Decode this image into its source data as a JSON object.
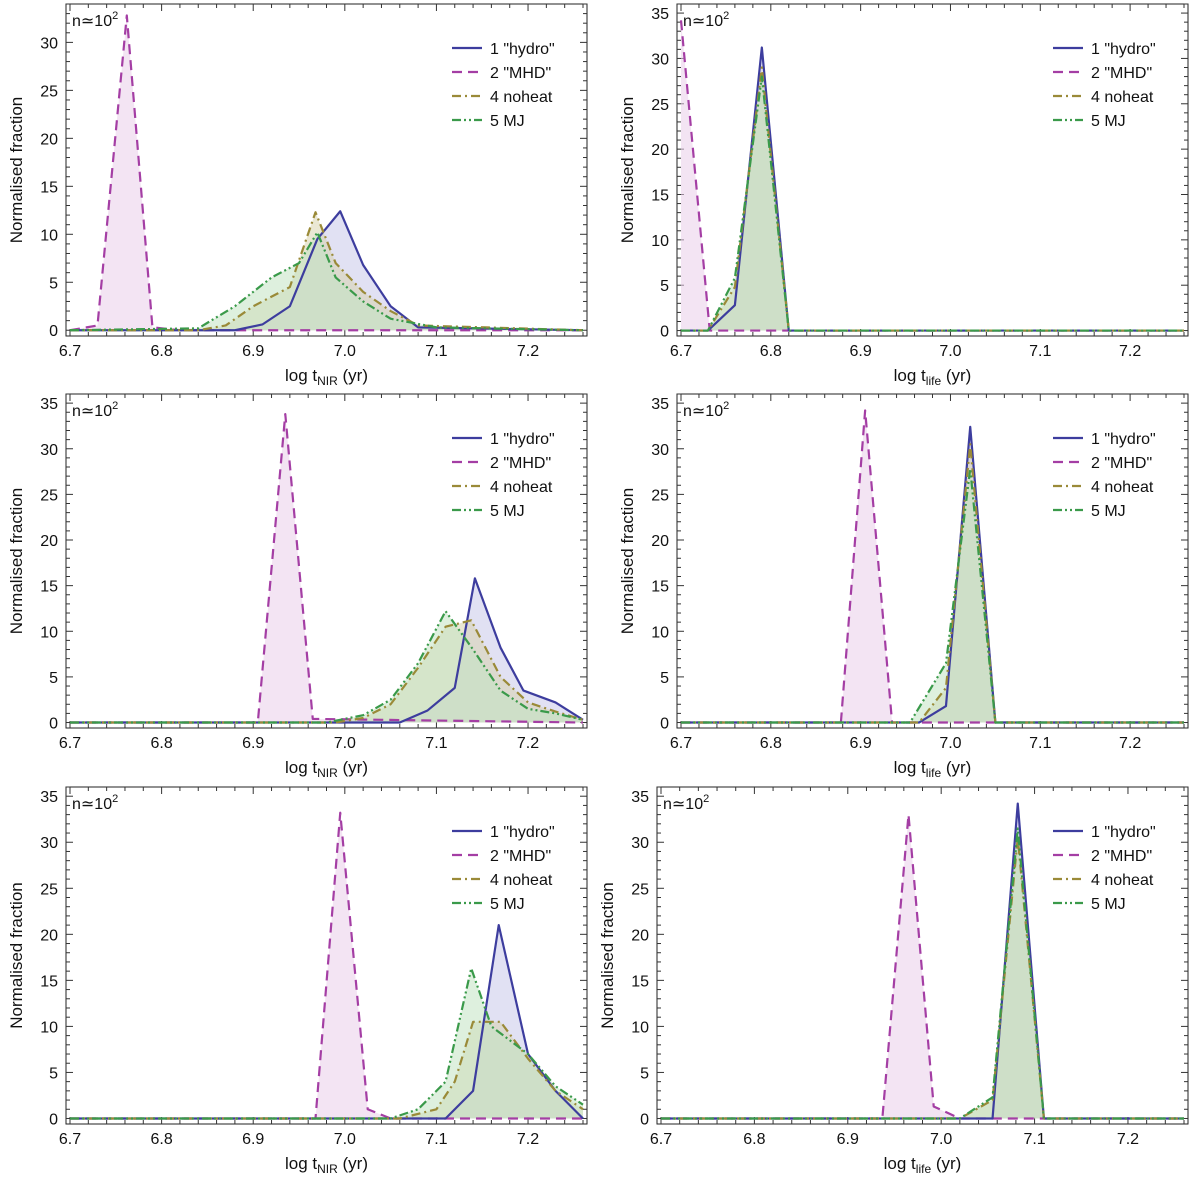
{
  "figure": {
    "legend": [
      {
        "name": "1 \"hydro\"",
        "color": "#3d3d9e",
        "fill": "#c9c9ea",
        "dash": "solid"
      },
      {
        "name": "2 \"MHD\"",
        "color": "#a43ea4",
        "fill": "#e9cde9",
        "dash": "dash"
      },
      {
        "name": "4 noheat",
        "color": "#9a8a38",
        "fill": "#d9d4ae",
        "dash": "dashdot"
      },
      {
        "name": "5 MJ",
        "color": "#3a9a4a",
        "fill": "#c3e3c3",
        "dash": "dashdotdot"
      }
    ],
    "annotation_prefix": "n≃10",
    "annotation_exp": "2"
  },
  "chart_data": [
    {
      "type": "area",
      "panel": "top-left",
      "xlabel_main": "log t",
      "xlabel_sub": "NIR",
      "xlabel_unit": " (yr)",
      "ylabel": "Normalised fraction",
      "xlim": [
        6.7,
        7.26
      ],
      "ylim": [
        -0.6,
        34
      ],
      "xticks": [
        "6.7",
        "6.8",
        "6.9",
        "7.0",
        "7.1",
        "7.2"
      ],
      "yticks": [
        "0",
        "5",
        "10",
        "15",
        "20",
        "25",
        "30"
      ],
      "series": [
        {
          "name": "1 \"hydro\"",
          "points": [
            [
              6.7,
              0
            ],
            [
              6.88,
              0
            ],
            [
              6.91,
              0.6
            ],
            [
              6.94,
              2.5
            ],
            [
              6.97,
              9.5
            ],
            [
              6.995,
              12.4
            ],
            [
              7.02,
              6.8
            ],
            [
              7.05,
              2.5
            ],
            [
              7.08,
              0.3
            ],
            [
              7.26,
              0
            ]
          ]
        },
        {
          "name": "2 \"MHD\"",
          "points": [
            [
              6.7,
              0
            ],
            [
              6.73,
              0.5
            ],
            [
              6.762,
              32.8
            ],
            [
              6.79,
              0.3
            ],
            [
              6.82,
              0
            ],
            [
              7.26,
              0
            ]
          ]
        },
        {
          "name": "4 noheat",
          "points": [
            [
              6.7,
              0
            ],
            [
              6.84,
              0
            ],
            [
              6.87,
              0.5
            ],
            [
              6.9,
              2.5
            ],
            [
              6.94,
              4.5
            ],
            [
              6.968,
              12.3
            ],
            [
              6.99,
              7.0
            ],
            [
              7.02,
              4.0
            ],
            [
              7.05,
              2.0
            ],
            [
              7.08,
              0.5
            ],
            [
              7.26,
              0
            ]
          ]
        },
        {
          "name": "5 MJ",
          "points": [
            [
              6.7,
              0
            ],
            [
              6.84,
              0.2
            ],
            [
              6.88,
              2.5
            ],
            [
              6.92,
              5.5
            ],
            [
              6.95,
              7.0
            ],
            [
              6.97,
              10.2
            ],
            [
              6.99,
              5.5
            ],
            [
              7.02,
              3.0
            ],
            [
              7.05,
              1.2
            ],
            [
              7.1,
              0.3
            ],
            [
              7.26,
              0
            ]
          ]
        }
      ]
    },
    {
      "type": "area",
      "panel": "top-right",
      "xlabel_main": "log t",
      "xlabel_sub": "life",
      "xlabel_unit": " (yr)",
      "ylabel": "Normalised fraction",
      "xlim": [
        6.7,
        7.26
      ],
      "ylim": [
        -0.6,
        36
      ],
      "xticks": [
        "6.7",
        "6.8",
        "6.9",
        "7.0",
        "7.1",
        "7.2"
      ],
      "yticks": [
        "0",
        "5",
        "10",
        "15",
        "20",
        "25",
        "30",
        "35"
      ],
      "series": [
        {
          "name": "1 \"hydro\"",
          "points": [
            [
              6.7,
              0
            ],
            [
              6.73,
              0
            ],
            [
              6.76,
              2.8
            ],
            [
              6.79,
              31.2
            ],
            [
              6.82,
              0
            ],
            [
              7.26,
              0
            ]
          ]
        },
        {
          "name": "2 \"MHD\"",
          "points": [
            [
              6.7,
              34.2
            ],
            [
              6.732,
              0
            ],
            [
              7.26,
              0
            ]
          ]
        },
        {
          "name": "4 noheat",
          "points": [
            [
              6.7,
              0
            ],
            [
              6.73,
              0
            ],
            [
              6.76,
              4.8
            ],
            [
              6.79,
              29.0
            ],
            [
              6.82,
              0
            ],
            [
              7.26,
              0
            ]
          ]
        },
        {
          "name": "5 MJ",
          "points": [
            [
              6.7,
              0
            ],
            [
              6.73,
              0
            ],
            [
              6.76,
              5.8
            ],
            [
              6.79,
              28.0
            ],
            [
              6.82,
              0
            ],
            [
              7.26,
              0
            ]
          ]
        }
      ]
    },
    {
      "type": "area",
      "panel": "middle-left",
      "xlabel_main": "log t",
      "xlabel_sub": "NIR",
      "xlabel_unit": " (yr)",
      "ylabel": "Normalised fraction",
      "xlim": [
        6.7,
        7.26
      ],
      "ylim": [
        -0.6,
        36
      ],
      "xticks": [
        "6.7",
        "6.8",
        "6.9",
        "7.0",
        "7.1",
        "7.2"
      ],
      "yticks": [
        "0",
        "5",
        "10",
        "15",
        "20",
        "25",
        "30",
        "35"
      ],
      "series": [
        {
          "name": "1 \"hydro\"",
          "points": [
            [
              6.7,
              0
            ],
            [
              7.06,
              0
            ],
            [
              7.09,
              1.3
            ],
            [
              7.12,
              3.8
            ],
            [
              7.142,
              15.8
            ],
            [
              7.17,
              8.2
            ],
            [
              7.195,
              3.5
            ],
            [
              7.23,
              2.2
            ],
            [
              7.26,
              0.3
            ]
          ]
        },
        {
          "name": "2 \"MHD\"",
          "points": [
            [
              6.7,
              0
            ],
            [
              6.905,
              0
            ],
            [
              6.935,
              33.8
            ],
            [
              6.965,
              0.4
            ],
            [
              7.26,
              0
            ]
          ]
        },
        {
          "name": "4 noheat",
          "points": [
            [
              6.7,
              0
            ],
            [
              6.99,
              0
            ],
            [
              7.02,
              0.5
            ],
            [
              7.05,
              2.0
            ],
            [
              7.08,
              6.0
            ],
            [
              7.11,
              10.5
            ],
            [
              7.138,
              11.2
            ],
            [
              7.17,
              5.0
            ],
            [
              7.2,
              2.2
            ],
            [
              7.23,
              1.2
            ],
            [
              7.26,
              0.3
            ]
          ]
        },
        {
          "name": "5 MJ",
          "points": [
            [
              6.7,
              0
            ],
            [
              6.98,
              0
            ],
            [
              7.02,
              0.8
            ],
            [
              7.05,
              2.5
            ],
            [
              7.08,
              6.5
            ],
            [
              7.11,
              12.2
            ],
            [
              7.14,
              8.0
            ],
            [
              7.17,
              3.5
            ],
            [
              7.2,
              1.5
            ],
            [
              7.23,
              1.0
            ],
            [
              7.26,
              0.3
            ]
          ]
        }
      ]
    },
    {
      "type": "area",
      "panel": "middle-right",
      "xlabel_main": "log t",
      "xlabel_sub": "life",
      "xlabel_unit": " (yr)",
      "ylabel": "Normalised fraction",
      "xlim": [
        6.7,
        7.26
      ],
      "ylim": [
        -0.6,
        36
      ],
      "xticks": [
        "6.7",
        "6.8",
        "6.9",
        "7.0",
        "7.1",
        "7.2"
      ],
      "yticks": [
        "0",
        "5",
        "10",
        "15",
        "20",
        "25",
        "30",
        "35"
      ],
      "series": [
        {
          "name": "1 \"hydro\"",
          "points": [
            [
              6.7,
              0
            ],
            [
              6.965,
              0
            ],
            [
              6.995,
              1.8
            ],
            [
              7.022,
              32.4
            ],
            [
              7.05,
              0
            ],
            [
              7.26,
              0
            ]
          ]
        },
        {
          "name": "2 \"MHD\"",
          "points": [
            [
              6.7,
              0
            ],
            [
              6.878,
              0
            ],
            [
              6.905,
              34.2
            ],
            [
              6.935,
              0
            ],
            [
              7.26,
              0
            ]
          ]
        },
        {
          "name": "4 noheat",
          "points": [
            [
              6.7,
              0
            ],
            [
              6.965,
              0
            ],
            [
              6.995,
              3.8
            ],
            [
              7.022,
              30.5
            ],
            [
              7.05,
              0
            ],
            [
              7.26,
              0
            ]
          ]
        },
        {
          "name": "5 MJ",
          "points": [
            [
              6.7,
              0
            ],
            [
              6.955,
              0
            ],
            [
              6.995,
              6.5
            ],
            [
              7.022,
              27.8
            ],
            [
              7.05,
              0
            ],
            [
              7.26,
              0
            ]
          ]
        }
      ]
    },
    {
      "type": "area",
      "panel": "bottom-left",
      "xlabel_main": "log t",
      "xlabel_sub": "NIR",
      "xlabel_unit": " (yr)",
      "ylabel": "Normalised fraction",
      "xlim": [
        6.7,
        7.26
      ],
      "ylim": [
        -0.6,
        36
      ],
      "xticks": [
        "6.7",
        "6.8",
        "6.9",
        "7.0",
        "7.1",
        "7.2"
      ],
      "yticks": [
        "0",
        "5",
        "10",
        "15",
        "20",
        "25",
        "30",
        "35"
      ],
      "series": [
        {
          "name": "1 \"hydro\"",
          "points": [
            [
              6.7,
              0
            ],
            [
              7.11,
              0
            ],
            [
              7.14,
              3.0
            ],
            [
              7.168,
              21.0
            ],
            [
              7.2,
              7.0
            ],
            [
              7.23,
              3.0
            ],
            [
              7.26,
              0
            ]
          ]
        },
        {
          "name": "2 \"MHD\"",
          "points": [
            [
              6.7,
              0
            ],
            [
              6.968,
              0
            ],
            [
              6.995,
              33.2
            ],
            [
              7.025,
              1.0
            ],
            [
              7.05,
              0
            ],
            [
              7.26,
              0
            ]
          ]
        },
        {
          "name": "4 noheat",
          "points": [
            [
              6.7,
              0
            ],
            [
              7.06,
              0
            ],
            [
              7.1,
              1.0
            ],
            [
              7.12,
              4.0
            ],
            [
              7.14,
              10.5
            ],
            [
              7.17,
              10.5
            ],
            [
              7.2,
              6.5
            ],
            [
              7.23,
              3.0
            ],
            [
              7.26,
              1.0
            ]
          ]
        },
        {
          "name": "5 MJ",
          "points": [
            [
              6.7,
              0
            ],
            [
              7.05,
              0
            ],
            [
              7.08,
              1.0
            ],
            [
              7.11,
              4.0
            ],
            [
              7.138,
              16.3
            ],
            [
              7.16,
              10.0
            ],
            [
              7.2,
              7.0
            ],
            [
              7.23,
              3.5
            ],
            [
              7.26,
              1.5
            ]
          ]
        }
      ]
    },
    {
      "type": "area",
      "panel": "bottom-right",
      "xlabel_main": "log t",
      "xlabel_sub": "life",
      "xlabel_unit": " (yr)",
      "ylabel": "Normalised fraction",
      "xlim": [
        6.7,
        7.26
      ],
      "ylim": [
        -0.6,
        36
      ],
      "xticks": [
        "6.7",
        "6.8",
        "6.9",
        "7.0",
        "7.1",
        "7.2"
      ],
      "yticks": [
        "0",
        "5",
        "10",
        "15",
        "20",
        "25",
        "30",
        "35"
      ],
      "series": [
        {
          "name": "1 \"hydro\"",
          "points": [
            [
              6.7,
              0
            ],
            [
              7.055,
              0
            ],
            [
              7.082,
              34.2
            ],
            [
              7.11,
              0
            ],
            [
              7.26,
              0
            ]
          ]
        },
        {
          "name": "2 \"MHD\"",
          "points": [
            [
              6.7,
              0
            ],
            [
              6.937,
              0
            ],
            [
              6.965,
              33.0
            ],
            [
              6.992,
              1.3
            ],
            [
              7.02,
              0
            ],
            [
              7.26,
              0
            ]
          ]
        },
        {
          "name": "4 noheat",
          "points": [
            [
              6.7,
              0
            ],
            [
              7.02,
              0
            ],
            [
              7.055,
              2.0
            ],
            [
              7.082,
              30.5
            ],
            [
              7.11,
              0
            ],
            [
              7.26,
              0
            ]
          ]
        },
        {
          "name": "5 MJ",
          "points": [
            [
              6.7,
              0
            ],
            [
              7.02,
              0
            ],
            [
              7.055,
              2.3
            ],
            [
              7.082,
              31.5
            ],
            [
              7.11,
              0
            ],
            [
              7.26,
              0
            ]
          ]
        }
      ]
    }
  ]
}
